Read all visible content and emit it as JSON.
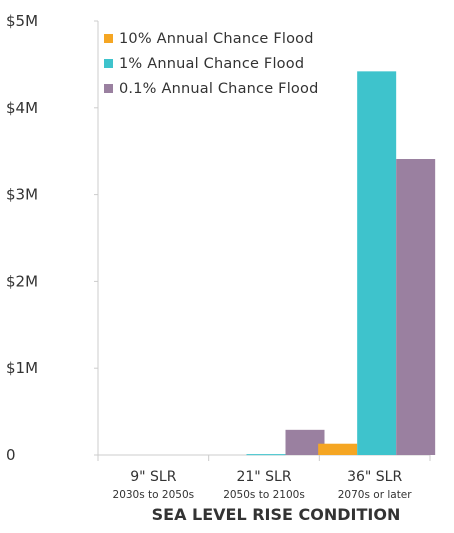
{
  "chart_data": {
    "type": "bar",
    "xlabel": "SEA LEVEL RISE CONDITION",
    "ylabel": "",
    "ylim": [
      0,
      5000000
    ],
    "yticks": [
      0,
      1000000,
      2000000,
      3000000,
      4000000,
      5000000
    ],
    "ytick_labels": [
      "0",
      "$1M",
      "$2M",
      "$3M",
      "$4M",
      "$5M"
    ],
    "categories": [
      {
        "label": "9\" SLR",
        "sublabel": "2030s to 2050s"
      },
      {
        "label": "21\" SLR",
        "sublabel": "2050s to 2100s"
      },
      {
        "label": "36\" SLR",
        "sublabel": "2070s or later"
      }
    ],
    "series": [
      {
        "name": "10% Annual Chance Flood",
        "color": "#f5a623",
        "values": [
          0,
          0,
          130000
        ]
      },
      {
        "name": "1% Annual Chance Flood",
        "color": "#3ec3cc",
        "values": [
          0,
          10000,
          4420000
        ]
      },
      {
        "name": "0.1% Annual Chance Flood",
        "color": "#9a80a0",
        "values": [
          0,
          290000,
          3410000
        ]
      }
    ],
    "grid": false,
    "legend_position": "top-left"
  }
}
